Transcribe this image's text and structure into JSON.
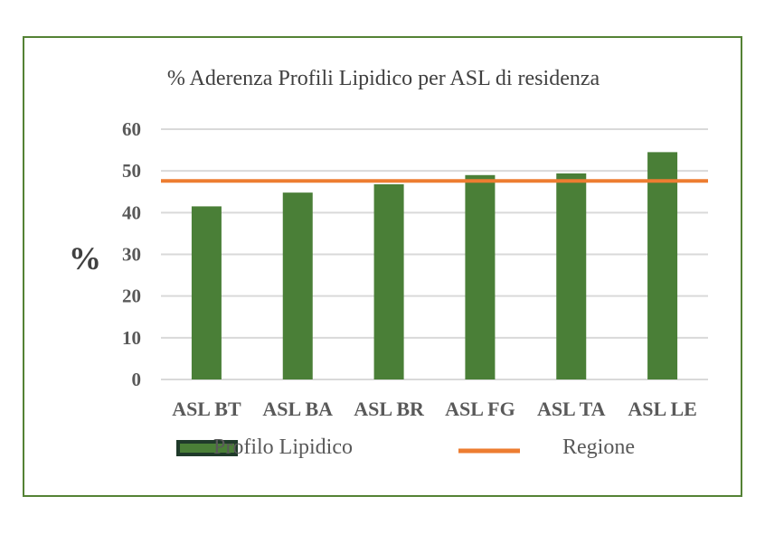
{
  "chart_data": {
    "type": "bar",
    "title": "% Aderenza Profili Lipidico per ASL di residenza",
    "ylabel": "%",
    "xlabel": "",
    "categories": [
      "ASL BT",
      "ASL BA",
      "ASL BR",
      "ASL FG",
      "ASL TA",
      "ASL LE"
    ],
    "series": [
      {
        "name": "Profilo Lipidico",
        "type": "bar",
        "values": [
          41.5,
          44.8,
          46.8,
          49.0,
          49.4,
          54.5
        ],
        "color": "#4a7f37"
      },
      {
        "name": "Regione",
        "type": "line",
        "values": [
          47.6,
          47.6,
          47.6,
          47.6,
          47.6,
          47.6
        ],
        "color": "#ed7d31"
      }
    ],
    "ylim": [
      0,
      60
    ],
    "yticks": [
      "0",
      "10",
      "20",
      "30",
      "40",
      "50",
      "60"
    ],
    "grid": true,
    "legend_position": "bottom"
  },
  "colors": {
    "frame": "#548235",
    "grid": "#d9d9d9",
    "legend_bar_border": "#1f3a2a"
  }
}
